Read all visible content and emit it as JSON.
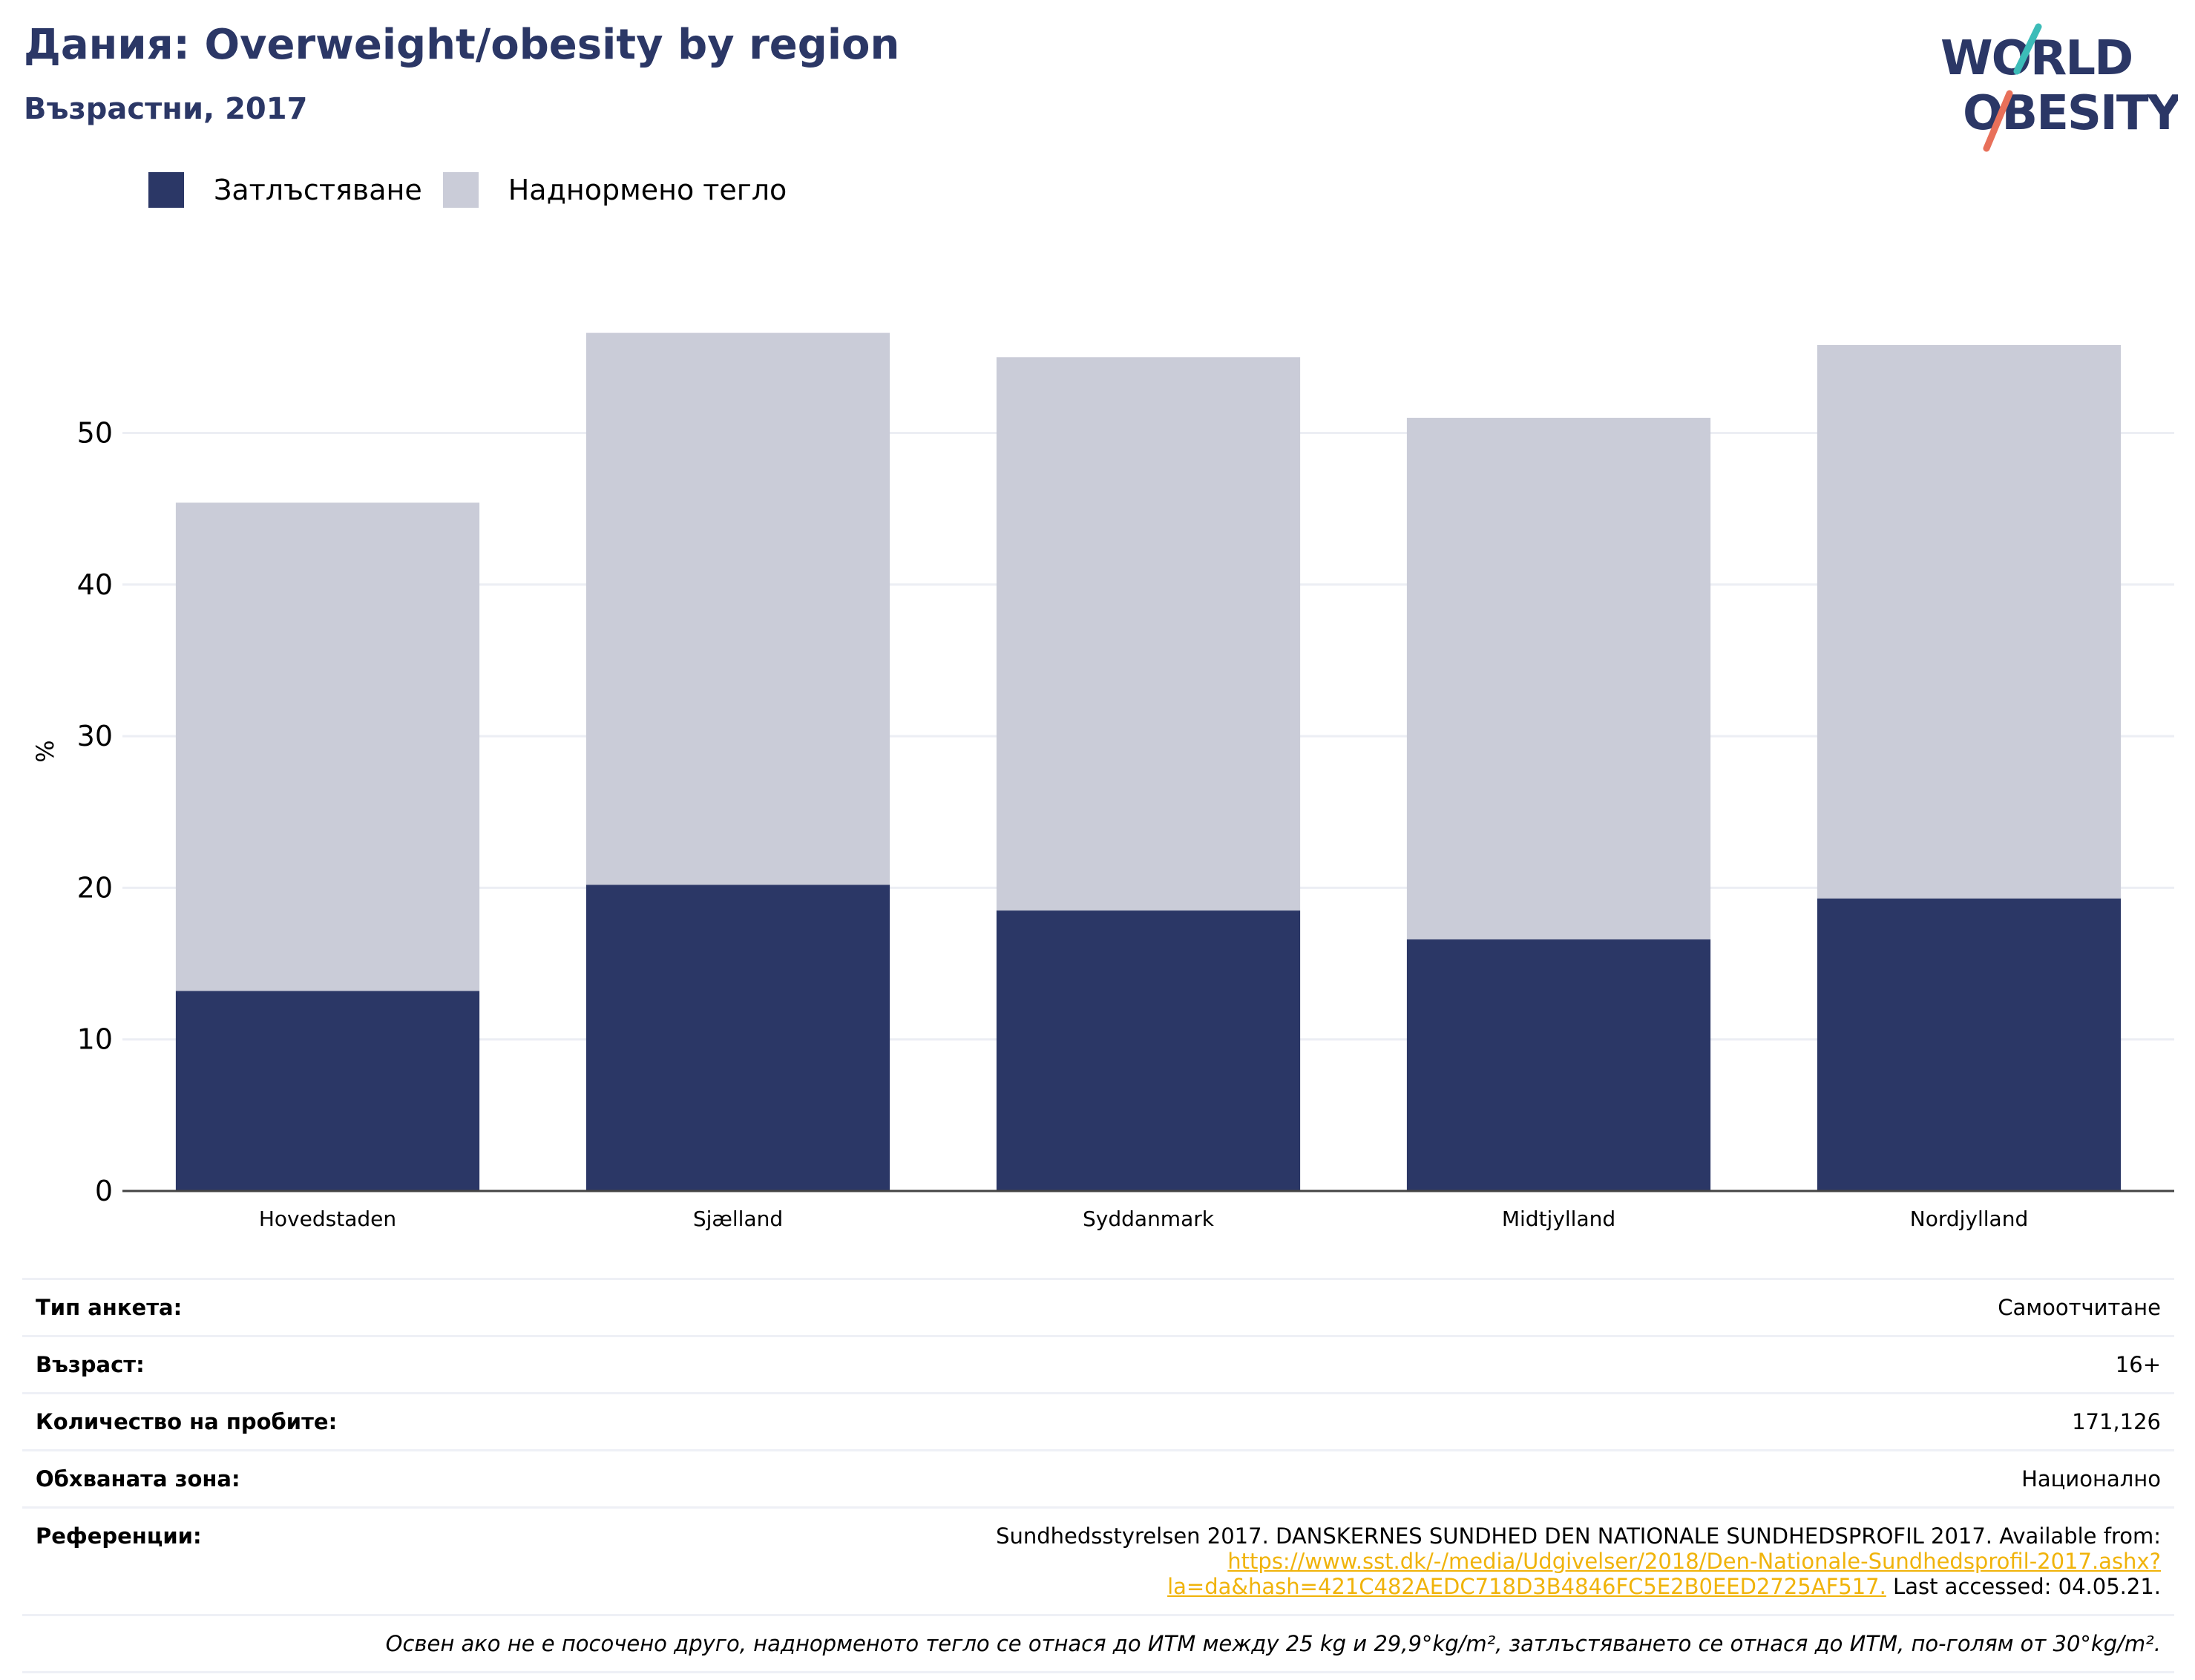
{
  "header": {
    "title": "Дания: Overweight/obesity by region",
    "subtitle": "Възрастни, 2017"
  },
  "logo": {
    "line1": "WORLD",
    "line2": "OBESITY"
  },
  "chart_data": {
    "type": "bar",
    "stacked": true,
    "categories": [
      "Hovedstaden",
      "Sjælland",
      "Syddanmark",
      "Midtjylland",
      "Nordjylland"
    ],
    "series": [
      {
        "name": "Затлъстяване",
        "values": [
          13.2,
          20.2,
          18.5,
          16.6,
          19.3
        ],
        "color": "#2b3766"
      },
      {
        "name": "Наднормено тегло",
        "values": [
          32.2,
          36.4,
          36.5,
          34.4,
          36.5
        ],
        "color": "#caccd8"
      }
    ],
    "ylabel": "%",
    "ylim": [
      0,
      58
    ],
    "yticks": [
      0,
      10,
      20,
      30,
      40,
      50
    ],
    "grid": true,
    "legend": "top-left"
  },
  "info": {
    "rows": [
      {
        "label": "Тип анкета:",
        "value": "Самоотчитане"
      },
      {
        "label": "Възраст:",
        "value": "16+"
      },
      {
        "label": "Количество на пробите:",
        "value": "171,126"
      },
      {
        "label": "Обхваната зона:",
        "value": "Национално"
      }
    ],
    "reference": {
      "label": "Референции:",
      "text_before": "Sundhedsstyrelsen 2017. DANSKERNES SUNDHED DEN NATIONALE SUNDHEDSPROFIL 2017. Available from: ",
      "link": "https://www.sst.dk/-/media/Udgivelser/2018/Den-Nationale-Sundhedsprofil-2017.ashx?la=da&hash=421C482AEDC718D3B4846FC5E2B0EED2725AF517.",
      "text_after": " Last accessed: 04.05.21."
    },
    "note": "Освен ако не е посочено друго, наднорменото тегло се отнася до ИТМ между 25 kg и 29,9°kg/m², затлъстяването се отнася до ИТМ, по-голям от 30°kg/m²."
  }
}
